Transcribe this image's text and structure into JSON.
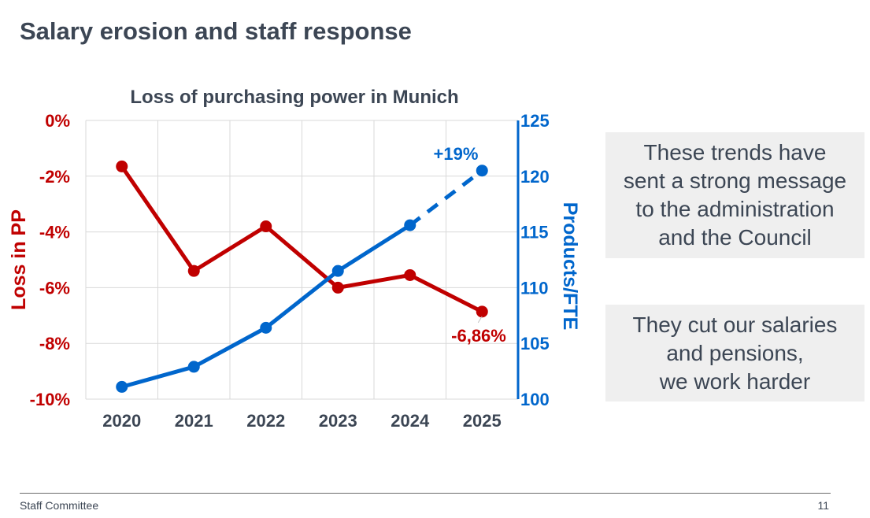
{
  "slide": {
    "title": "Salary erosion and staff response",
    "footer_left": "Staff Committee",
    "page_number": "11"
  },
  "callouts": [
    {
      "lines": [
        "These trends have",
        "sent a strong message",
        "to the administration",
        "and the Council"
      ]
    },
    {
      "lines": [
        "They cut our salaries",
        "and pensions,",
        "we work harder"
      ]
    }
  ],
  "chart_data": {
    "type": "line",
    "title": "Loss of purchasing power in Munich",
    "categories": [
      "2020",
      "2021",
      "2022",
      "2023",
      "2024",
      "2025"
    ],
    "y_left": {
      "label": "Loss in PP",
      "range": [
        -10,
        0
      ],
      "ticks": [
        0,
        -2,
        -4,
        -6,
        -8,
        -10
      ],
      "tick_labels": [
        "0%",
        "-2%",
        "-4%",
        "-6%",
        "-8%",
        "-10%"
      ],
      "color": "#c00000"
    },
    "y_right": {
      "label": "Products/FTE",
      "range": [
        100,
        125
      ],
      "ticks": [
        125,
        120,
        115,
        110,
        105,
        100
      ],
      "tick_labels": [
        "125",
        "120",
        "115",
        "110",
        "105",
        "100"
      ],
      "color": "#0066cc"
    },
    "grid": true,
    "series": [
      {
        "axis": "left",
        "color": "#c00000",
        "values": [
          -1.65,
          -5.4,
          -3.8,
          -6.0,
          -5.55,
          -6.86
        ],
        "end_label": "-6,86%"
      },
      {
        "axis": "right",
        "color": "#0066cc",
        "values": [
          101.1,
          102.9,
          106.4,
          111.5,
          115.6,
          120.5
        ],
        "dashed_from_index": 4,
        "end_label": "+19%"
      }
    ]
  }
}
